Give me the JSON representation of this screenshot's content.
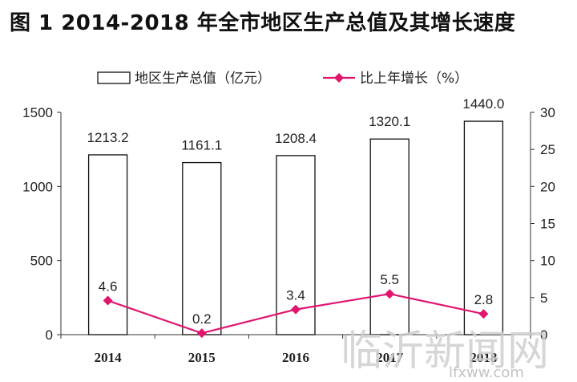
{
  "chart_data": {
    "type": "bar",
    "title": "图 1   2014-2018 年全市地区生产总值及其增长速度",
    "categories": [
      "2014",
      "2015",
      "2016",
      "2017",
      "2018"
    ],
    "series": [
      {
        "name": "地区生产总值（亿元）",
        "type": "bar",
        "axis": "left",
        "values": [
          1213.2,
          1161.1,
          1208.4,
          1320.1,
          1440.0
        ],
        "labels": [
          "1213.2",
          "1161.1",
          "1208.4",
          "1320.1",
          "1440.0"
        ]
      },
      {
        "name": "比上年增长（%）",
        "type": "line",
        "axis": "right",
        "values": [
          4.6,
          0.2,
          3.4,
          5.5,
          2.8
        ],
        "labels": [
          "4.6",
          "0.2",
          "3.4",
          "5.5",
          "2.8"
        ],
        "color": "#e0156e"
      }
    ],
    "y_left": {
      "min": 0,
      "max": 1500,
      "ticks": [
        "0",
        "500",
        "1000",
        "1500"
      ]
    },
    "y_right": {
      "min": 0,
      "max": 30,
      "ticks": [
        "0",
        "5",
        "10",
        "15",
        "20",
        "25",
        "30"
      ]
    },
    "legend_placement": "top",
    "grid": false
  },
  "watermark": {
    "main": "临沂新闻网",
    "sub": "lfxww.com"
  }
}
